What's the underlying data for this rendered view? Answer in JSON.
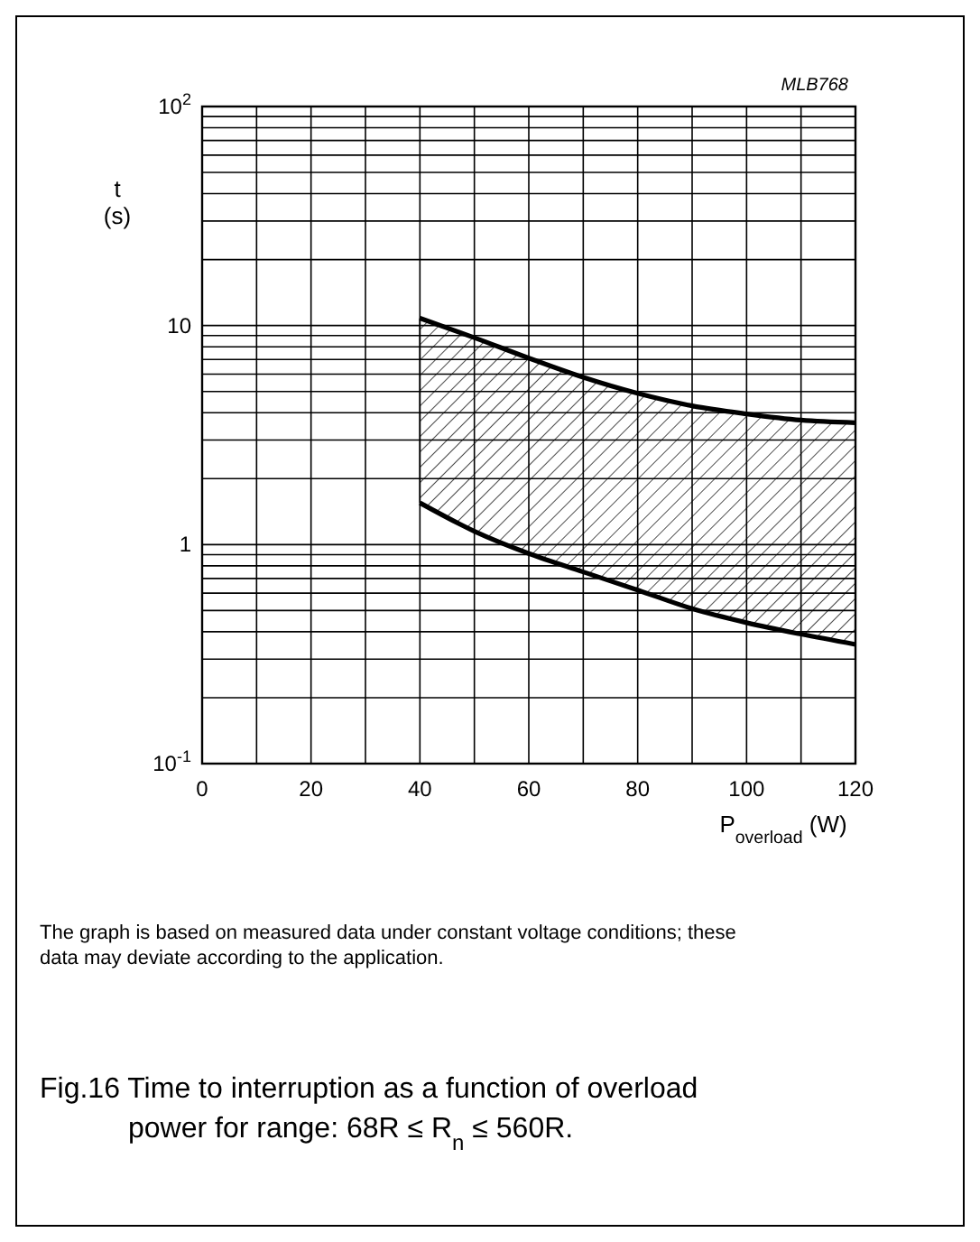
{
  "chart_data": {
    "type": "line",
    "title": "Fig.16  Time to interruption as a function of overload power for range: 68R ≤ R$_{n}$ ≤ 560R.",
    "xlabel": "P$_{overload}$ (W)",
    "ylabel": "t (s)",
    "annotations": [
      "MLB768",
      "The graph is based on measured data under constant voltage conditions; these data may deviate according to the application."
    ],
    "log": "y",
    "grid": true,
    "xlim": [
      0,
      120
    ],
    "ylim": [
      0.1,
      100
    ],
    "xticks": [
      0,
      {
        "value": 10,
        "label": null
      },
      20,
      {
        "value": 30,
        "label": null
      },
      40,
      {
        "value": 50,
        "label": null
      },
      60,
      {
        "value": 70,
        "label": null
      },
      80,
      {
        "value": 90,
        "label": null
      },
      100,
      {
        "value": 110,
        "label": null
      },
      120
    ],
    "yticks": [
      {
        "value": 0.1,
        "label": "10$^{-1}$"
      },
      {
        "value": 0.2,
        "label": null
      },
      {
        "value": 0.3,
        "label": null
      },
      {
        "value": 0.4,
        "label": null
      },
      {
        "value": 0.5,
        "label": null
      },
      {
        "value": 0.6,
        "label": null
      },
      {
        "value": 0.7,
        "label": null
      },
      {
        "value": 0.8,
        "label": null
      },
      {
        "value": 0.9,
        "label": null
      },
      1,
      {
        "value": 2,
        "label": null
      },
      {
        "value": 3,
        "label": null
      },
      {
        "value": 4,
        "label": null
      },
      {
        "value": 5,
        "label": null
      },
      {
        "value": 6,
        "label": null
      },
      {
        "value": 7,
        "label": null
      },
      {
        "value": 8,
        "label": null
      },
      {
        "value": 9,
        "label": null
      },
      10,
      {
        "value": 20,
        "label": null
      },
      {
        "value": 30,
        "label": null
      },
      {
        "value": 40,
        "label": null
      },
      {
        "value": 50,
        "label": null
      },
      {
        "value": 60,
        "label": null
      },
      {
        "value": 70,
        "label": null
      },
      {
        "value": 80,
        "label": null
      },
      {
        "value": 90,
        "label": null
      },
      {
        "value": 100,
        "label": "10$^{2}$"
      }
    ],
    "series": [
      {
        "color": "#000000",
        "x": [
          40,
          50,
          60,
          70,
          80,
          90,
          100,
          110,
          120
        ],
        "values": [
          10.8,
          8.8,
          7.1,
          5.8,
          4.9,
          4.3,
          3.95,
          3.7,
          3.6
        ]
      },
      {
        "color": "#000000",
        "x": [
          40,
          50,
          60,
          70,
          80,
          90,
          100,
          110,
          120
        ],
        "values": [
          1.55,
          1.15,
          0.91,
          0.75,
          0.62,
          0.51,
          0.44,
          0.39,
          0.35
        ]
      }
    ]
  }
}
